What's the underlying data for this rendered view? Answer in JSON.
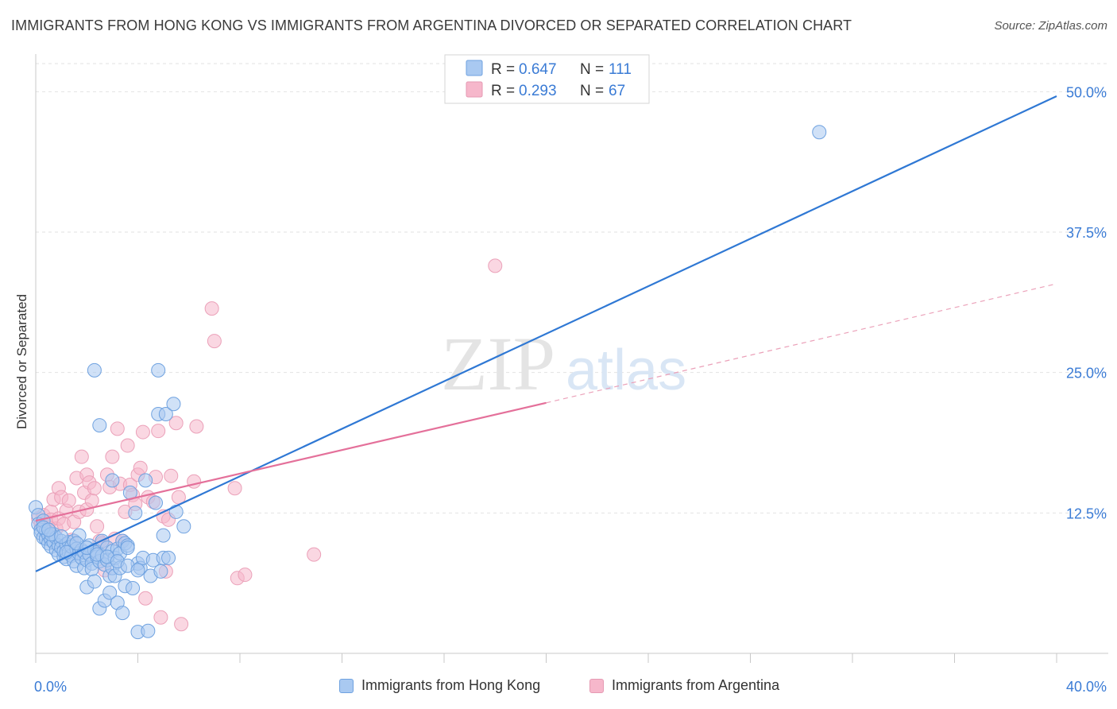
{
  "title": "IMMIGRANTS FROM HONG KONG VS IMMIGRANTS FROM ARGENTINA DIVORCED OR SEPARATED CORRELATION CHART",
  "source": "Source: ZipAtlas.com",
  "watermark": {
    "zip": "ZIP",
    "atlas": "atlas"
  },
  "colors": {
    "blue": "#2f78d4",
    "blue_fill": "#a9c9f1",
    "pink": "#e4709a",
    "pink_fill": "#f6b7cb",
    "value_text": "#3a7bd5",
    "grid": "#dcdcdc"
  },
  "legend_top": [
    {
      "r_label": "R = ",
      "r_value": "0.647",
      "n_label": "N = ",
      "n_value": "111"
    },
    {
      "r_label": "R = ",
      "r_value": "0.293",
      "n_label": "N = ",
      "n_value": "67"
    }
  ],
  "chart_data": {
    "type": "scatter",
    "title": "IMMIGRANTS FROM HONG KONG VS IMMIGRANTS FROM ARGENTINA DIVORCED OR SEPARATED CORRELATION CHART",
    "xlabel": "",
    "ylabel": "Divorced or Separated",
    "xlim": [
      0,
      40
    ],
    "ylim": [
      0,
      52.5
    ],
    "x_tick_labels": [
      "0.0%",
      "40.0%"
    ],
    "y_ticks": [
      12.5,
      25.0,
      37.5,
      50.0
    ],
    "y_tick_labels": [
      "12.5%",
      "25.0%",
      "37.5%",
      "50.0%"
    ],
    "grid": true,
    "legend_position": "top-center",
    "series": [
      {
        "name": "Immigrants from Hong Kong",
        "color": "#2f78d4",
        "R": 0.647,
        "N": 111,
        "trend": {
          "x": [
            0,
            40
          ],
          "y": [
            7.3,
            49.6
          ],
          "style": "solid"
        },
        "points": [
          [
            0.0,
            13.0
          ],
          [
            0.1,
            12.3
          ],
          [
            0.1,
            11.5
          ],
          [
            0.2,
            11.0
          ],
          [
            0.2,
            10.7
          ],
          [
            0.3,
            10.3
          ],
          [
            0.3,
            11.8
          ],
          [
            0.4,
            10.9
          ],
          [
            0.4,
            10.2
          ],
          [
            0.5,
            10.5
          ],
          [
            0.5,
            9.8
          ],
          [
            0.6,
            10.1
          ],
          [
            0.6,
            9.5
          ],
          [
            0.7,
            10.6
          ],
          [
            0.7,
            9.9
          ],
          [
            0.8,
            10.3
          ],
          [
            0.8,
            9.2
          ],
          [
            0.9,
            9.6
          ],
          [
            0.9,
            8.8
          ],
          [
            1.0,
            10.0
          ],
          [
            1.0,
            9.4
          ],
          [
            1.1,
            8.6
          ],
          [
            1.1,
            9.1
          ],
          [
            1.2,
            9.7
          ],
          [
            1.2,
            8.4
          ],
          [
            1.3,
            9.9
          ],
          [
            1.3,
            9.0
          ],
          [
            1.4,
            8.7
          ],
          [
            1.4,
            9.5
          ],
          [
            1.5,
            10.0
          ],
          [
            1.5,
            8.2
          ],
          [
            1.6,
            9.3
          ],
          [
            1.6,
            7.8
          ],
          [
            1.7,
            8.9
          ],
          [
            1.7,
            10.5
          ],
          [
            1.8,
            9.2
          ],
          [
            1.8,
            8.5
          ],
          [
            1.9,
            7.6
          ],
          [
            1.9,
            9.0
          ],
          [
            2.0,
            8.3
          ],
          [
            2.0,
            5.9
          ],
          [
            2.1,
            9.6
          ],
          [
            2.1,
            8.8
          ],
          [
            2.2,
            8.0
          ],
          [
            2.2,
            7.5
          ],
          [
            2.3,
            9.2
          ],
          [
            2.3,
            6.4
          ],
          [
            2.4,
            8.6
          ],
          [
            2.4,
            9.0
          ],
          [
            2.5,
            8.2
          ],
          [
            2.5,
            4.0
          ],
          [
            2.6,
            10.0
          ],
          [
            2.6,
            8.7
          ],
          [
            2.7,
            7.9
          ],
          [
            2.7,
            4.7
          ],
          [
            2.8,
            9.4
          ],
          [
            2.8,
            8.3
          ],
          [
            2.9,
            6.9
          ],
          [
            2.9,
            5.4
          ],
          [
            3.0,
            9.1
          ],
          [
            3.0,
            7.6
          ],
          [
            3.1,
            6.9
          ],
          [
            3.1,
            8.5
          ],
          [
            3.2,
            9.3
          ],
          [
            3.2,
            4.5
          ],
          [
            3.3,
            8.9
          ],
          [
            3.3,
            7.6
          ],
          [
            3.4,
            10.0
          ],
          [
            3.4,
            3.6
          ],
          [
            3.5,
            9.8
          ],
          [
            3.5,
            6.0
          ],
          [
            3.6,
            9.6
          ],
          [
            3.6,
            9.4
          ],
          [
            3.7,
            14.3
          ],
          [
            3.8,
            5.8
          ],
          [
            3.9,
            12.5
          ],
          [
            4.0,
            1.9
          ],
          [
            4.0,
            8.0
          ],
          [
            4.1,
            7.6
          ],
          [
            4.2,
            8.5
          ],
          [
            4.3,
            15.4
          ],
          [
            4.4,
            2.0
          ],
          [
            4.5,
            6.9
          ],
          [
            4.6,
            8.3
          ],
          [
            4.7,
            13.4
          ],
          [
            4.8,
            21.3
          ],
          [
            4.9,
            7.3
          ],
          [
            5.0,
            10.5
          ],
          [
            5.0,
            8.5
          ],
          [
            5.1,
            21.3
          ],
          [
            5.2,
            8.5
          ],
          [
            5.4,
            22.2
          ],
          [
            5.5,
            12.6
          ],
          [
            5.8,
            11.3
          ],
          [
            3.0,
            15.4
          ],
          [
            2.5,
            20.3
          ],
          [
            2.3,
            25.2
          ],
          [
            4.8,
            25.2
          ],
          [
            0.3,
            11.2
          ],
          [
            0.6,
            10.6
          ],
          [
            1.0,
            10.4
          ],
          [
            1.2,
            9.0
          ],
          [
            1.6,
            9.8
          ],
          [
            2.0,
            9.4
          ],
          [
            2.4,
            8.8
          ],
          [
            2.8,
            8.6
          ],
          [
            3.2,
            8.2
          ],
          [
            3.6,
            7.8
          ],
          [
            4.0,
            7.4
          ],
          [
            30.7,
            46.4
          ],
          [
            0.5,
            11.0
          ]
        ]
      },
      {
        "name": "Immigrants from Argentina",
        "color": "#e4709a",
        "R": 0.293,
        "N": 67,
        "trend": {
          "x": [
            0,
            20
          ],
          "y": [
            11.8,
            22.3
          ],
          "style": "solid"
        },
        "trend_extension": {
          "x": [
            20,
            40
          ],
          "y": [
            22.3,
            32.9
          ],
          "style": "dashed"
        },
        "points": [
          [
            0.1,
            12.0
          ],
          [
            0.2,
            11.5
          ],
          [
            0.3,
            12.3
          ],
          [
            0.4,
            11.7
          ],
          [
            0.5,
            11.2
          ],
          [
            0.6,
            12.6
          ],
          [
            0.6,
            11.9
          ],
          [
            0.7,
            13.7
          ],
          [
            0.8,
            11.1
          ],
          [
            0.9,
            14.7
          ],
          [
            0.9,
            12.0
          ],
          [
            1.0,
            13.9
          ],
          [
            1.1,
            11.5
          ],
          [
            1.2,
            12.7
          ],
          [
            1.3,
            13.6
          ],
          [
            1.4,
            10.1
          ],
          [
            1.5,
            11.7
          ],
          [
            1.6,
            15.6
          ],
          [
            1.7,
            12.6
          ],
          [
            1.8,
            17.5
          ],
          [
            1.9,
            14.3
          ],
          [
            2.0,
            15.9
          ],
          [
            2.0,
            12.8
          ],
          [
            2.1,
            15.2
          ],
          [
            2.2,
            13.6
          ],
          [
            2.3,
            14.7
          ],
          [
            2.4,
            11.3
          ],
          [
            2.5,
            10.0
          ],
          [
            2.6,
            9.8
          ],
          [
            2.7,
            7.4
          ],
          [
            2.8,
            15.9
          ],
          [
            2.9,
            14.8
          ],
          [
            3.0,
            17.5
          ],
          [
            3.1,
            10.2
          ],
          [
            3.2,
            20.0
          ],
          [
            3.3,
            15.1
          ],
          [
            3.4,
            10.0
          ],
          [
            3.5,
            12.6
          ],
          [
            3.6,
            18.5
          ],
          [
            3.7,
            15.0
          ],
          [
            3.8,
            14.1
          ],
          [
            3.9,
            13.3
          ],
          [
            4.0,
            15.9
          ],
          [
            4.1,
            16.5
          ],
          [
            4.2,
            19.7
          ],
          [
            4.3,
            4.9
          ],
          [
            4.4,
            13.9
          ],
          [
            4.6,
            13.5
          ],
          [
            4.7,
            15.7
          ],
          [
            4.8,
            19.8
          ],
          [
            4.9,
            3.2
          ],
          [
            5.0,
            12.2
          ],
          [
            5.1,
            7.3
          ],
          [
            5.2,
            11.9
          ],
          [
            5.3,
            15.8
          ],
          [
            5.5,
            20.5
          ],
          [
            5.6,
            13.9
          ],
          [
            5.7,
            2.6
          ],
          [
            6.3,
            20.2
          ],
          [
            6.2,
            15.3
          ],
          [
            6.9,
            30.7
          ],
          [
            7.0,
            27.8
          ],
          [
            7.8,
            14.7
          ],
          [
            7.9,
            6.7
          ],
          [
            8.2,
            7.0
          ],
          [
            10.9,
            8.8
          ],
          [
            18.0,
            34.5
          ]
        ]
      }
    ]
  },
  "legend_bottom": [
    {
      "label": "Immigrants from Hong Kong"
    },
    {
      "label": "Immigrants from Argentina"
    }
  ]
}
